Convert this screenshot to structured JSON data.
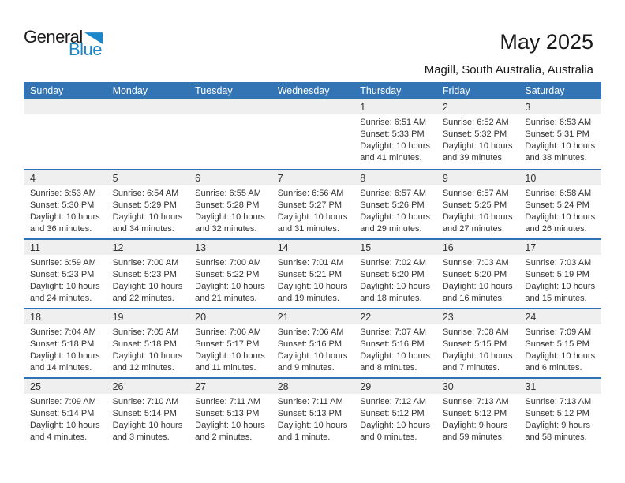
{
  "logo": {
    "part1": "General",
    "part2": "Blue"
  },
  "header": {
    "title": "May 2025",
    "subtitle": "Magill, South Australia, Australia"
  },
  "calendar": {
    "day_headers": [
      "Sunday",
      "Monday",
      "Tuesday",
      "Wednesday",
      "Thursday",
      "Friday",
      "Saturday"
    ],
    "weeks": [
      [
        null,
        null,
        null,
        null,
        {
          "day": "1",
          "sunrise": "Sunrise: 6:51 AM",
          "sunset": "Sunset: 5:33 PM",
          "daylight_hours": "Daylight: 10 hours",
          "daylight_minutes": "and 41 minutes."
        },
        {
          "day": "2",
          "sunrise": "Sunrise: 6:52 AM",
          "sunset": "Sunset: 5:32 PM",
          "daylight_hours": "Daylight: 10 hours",
          "daylight_minutes": "and 39 minutes."
        },
        {
          "day": "3",
          "sunrise": "Sunrise: 6:53 AM",
          "sunset": "Sunset: 5:31 PM",
          "daylight_hours": "Daylight: 10 hours",
          "daylight_minutes": "and 38 minutes."
        }
      ],
      [
        {
          "day": "4",
          "sunrise": "Sunrise: 6:53 AM",
          "sunset": "Sunset: 5:30 PM",
          "daylight_hours": "Daylight: 10 hours",
          "daylight_minutes": "and 36 minutes."
        },
        {
          "day": "5",
          "sunrise": "Sunrise: 6:54 AM",
          "sunset": "Sunset: 5:29 PM",
          "daylight_hours": "Daylight: 10 hours",
          "daylight_minutes": "and 34 minutes."
        },
        {
          "day": "6",
          "sunrise": "Sunrise: 6:55 AM",
          "sunset": "Sunset: 5:28 PM",
          "daylight_hours": "Daylight: 10 hours",
          "daylight_minutes": "and 32 minutes."
        },
        {
          "day": "7",
          "sunrise": "Sunrise: 6:56 AM",
          "sunset": "Sunset: 5:27 PM",
          "daylight_hours": "Daylight: 10 hours",
          "daylight_minutes": "and 31 minutes."
        },
        {
          "day": "8",
          "sunrise": "Sunrise: 6:57 AM",
          "sunset": "Sunset: 5:26 PM",
          "daylight_hours": "Daylight: 10 hours",
          "daylight_minutes": "and 29 minutes."
        },
        {
          "day": "9",
          "sunrise": "Sunrise: 6:57 AM",
          "sunset": "Sunset: 5:25 PM",
          "daylight_hours": "Daylight: 10 hours",
          "daylight_minutes": "and 27 minutes."
        },
        {
          "day": "10",
          "sunrise": "Sunrise: 6:58 AM",
          "sunset": "Sunset: 5:24 PM",
          "daylight_hours": "Daylight: 10 hours",
          "daylight_minutes": "and 26 minutes."
        }
      ],
      [
        {
          "day": "11",
          "sunrise": "Sunrise: 6:59 AM",
          "sunset": "Sunset: 5:23 PM",
          "daylight_hours": "Daylight: 10 hours",
          "daylight_minutes": "and 24 minutes."
        },
        {
          "day": "12",
          "sunrise": "Sunrise: 7:00 AM",
          "sunset": "Sunset: 5:23 PM",
          "daylight_hours": "Daylight: 10 hours",
          "daylight_minutes": "and 22 minutes."
        },
        {
          "day": "13",
          "sunrise": "Sunrise: 7:00 AM",
          "sunset": "Sunset: 5:22 PM",
          "daylight_hours": "Daylight: 10 hours",
          "daylight_minutes": "and 21 minutes."
        },
        {
          "day": "14",
          "sunrise": "Sunrise: 7:01 AM",
          "sunset": "Sunset: 5:21 PM",
          "daylight_hours": "Daylight: 10 hours",
          "daylight_minutes": "and 19 minutes."
        },
        {
          "day": "15",
          "sunrise": "Sunrise: 7:02 AM",
          "sunset": "Sunset: 5:20 PM",
          "daylight_hours": "Daylight: 10 hours",
          "daylight_minutes": "and 18 minutes."
        },
        {
          "day": "16",
          "sunrise": "Sunrise: 7:03 AM",
          "sunset": "Sunset: 5:20 PM",
          "daylight_hours": "Daylight: 10 hours",
          "daylight_minutes": "and 16 minutes."
        },
        {
          "day": "17",
          "sunrise": "Sunrise: 7:03 AM",
          "sunset": "Sunset: 5:19 PM",
          "daylight_hours": "Daylight: 10 hours",
          "daylight_minutes": "and 15 minutes."
        }
      ],
      [
        {
          "day": "18",
          "sunrise": "Sunrise: 7:04 AM",
          "sunset": "Sunset: 5:18 PM",
          "daylight_hours": "Daylight: 10 hours",
          "daylight_minutes": "and 14 minutes."
        },
        {
          "day": "19",
          "sunrise": "Sunrise: 7:05 AM",
          "sunset": "Sunset: 5:18 PM",
          "daylight_hours": "Daylight: 10 hours",
          "daylight_minutes": "and 12 minutes."
        },
        {
          "day": "20",
          "sunrise": "Sunrise: 7:06 AM",
          "sunset": "Sunset: 5:17 PM",
          "daylight_hours": "Daylight: 10 hours",
          "daylight_minutes": "and 11 minutes."
        },
        {
          "day": "21",
          "sunrise": "Sunrise: 7:06 AM",
          "sunset": "Sunset: 5:16 PM",
          "daylight_hours": "Daylight: 10 hours",
          "daylight_minutes": "and 9 minutes."
        },
        {
          "day": "22",
          "sunrise": "Sunrise: 7:07 AM",
          "sunset": "Sunset: 5:16 PM",
          "daylight_hours": "Daylight: 10 hours",
          "daylight_minutes": "and 8 minutes."
        },
        {
          "day": "23",
          "sunrise": "Sunrise: 7:08 AM",
          "sunset": "Sunset: 5:15 PM",
          "daylight_hours": "Daylight: 10 hours",
          "daylight_minutes": "and 7 minutes."
        },
        {
          "day": "24",
          "sunrise": "Sunrise: 7:09 AM",
          "sunset": "Sunset: 5:15 PM",
          "daylight_hours": "Daylight: 10 hours",
          "daylight_minutes": "and 6 minutes."
        }
      ],
      [
        {
          "day": "25",
          "sunrise": "Sunrise: 7:09 AM",
          "sunset": "Sunset: 5:14 PM",
          "daylight_hours": "Daylight: 10 hours",
          "daylight_minutes": "and 4 minutes."
        },
        {
          "day": "26",
          "sunrise": "Sunrise: 7:10 AM",
          "sunset": "Sunset: 5:14 PM",
          "daylight_hours": "Daylight: 10 hours",
          "daylight_minutes": "and 3 minutes."
        },
        {
          "day": "27",
          "sunrise": "Sunrise: 7:11 AM",
          "sunset": "Sunset: 5:13 PM",
          "daylight_hours": "Daylight: 10 hours",
          "daylight_minutes": "and 2 minutes."
        },
        {
          "day": "28",
          "sunrise": "Sunrise: 7:11 AM",
          "sunset": "Sunset: 5:13 PM",
          "daylight_hours": "Daylight: 10 hours",
          "daylight_minutes": "and 1 minute."
        },
        {
          "day": "29",
          "sunrise": "Sunrise: 7:12 AM",
          "sunset": "Sunset: 5:12 PM",
          "daylight_hours": "Daylight: 10 hours",
          "daylight_minutes": "and 0 minutes."
        },
        {
          "day": "30",
          "sunrise": "Sunrise: 7:13 AM",
          "sunset": "Sunset: 5:12 PM",
          "daylight_hours": "Daylight: 9 hours",
          "daylight_minutes": "and 59 minutes."
        },
        {
          "day": "31",
          "sunrise": "Sunrise: 7:13 AM",
          "sunset": "Sunset: 5:12 PM",
          "daylight_hours": "Daylight: 9 hours",
          "daylight_minutes": "and 58 minutes."
        }
      ]
    ]
  },
  "colors": {
    "header_bg": "#3374B5",
    "separator": "#2E74B5",
    "band_bg": "#EFEFEF",
    "logo_blue": "#1B87C9"
  }
}
